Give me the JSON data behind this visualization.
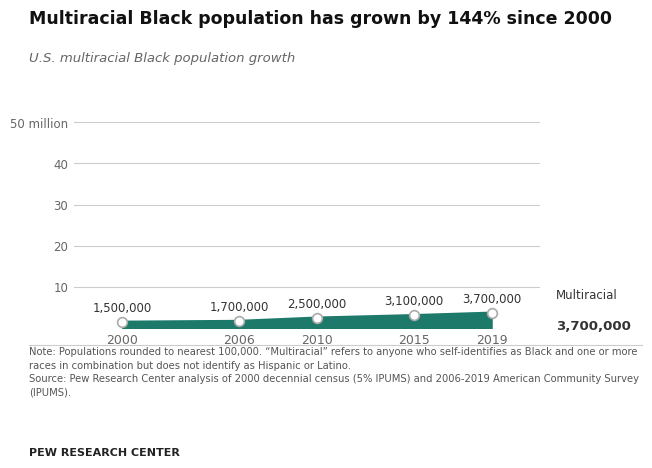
{
  "title": "Multiracial Black population has grown by 144% since 2000",
  "subtitle": "U.S. multiracial Black population growth",
  "years": [
    2000,
    2006,
    2010,
    2015,
    2019
  ],
  "values_millions": [
    1.5,
    1.7,
    2.5,
    3.1,
    3.7
  ],
  "labels": [
    "1,500,000",
    "1,700,000",
    "2,500,000",
    "3,100,000",
    "3,700,000"
  ],
  "line_color": "#1d7a6b",
  "marker_facecolor": "white",
  "marker_edgecolor": "#aaaaaa",
  "ylim": [
    0,
    55
  ],
  "yticks": [
    10,
    20,
    30,
    40,
    50
  ],
  "ytick_labels": [
    "10",
    "20",
    "30",
    "40",
    "50 million"
  ],
  "note_text": "Note: Populations rounded to nearest 100,000. “Multiracial” refers to anyone who self-identifies as Black and one or more\nraces in combination but does not identify as Hispanic or Latino.\nSource: Pew Research Center analysis of 2000 decennial census (5% IPUMS) and 2006-2019 American Community Survey\n(IPUMS).",
  "footer": "PEW RESEARCH CENTER",
  "bg_color": "#ffffff",
  "legend_label": "Multiracial",
  "legend_value": "3,700,000",
  "grid_color": "#cccccc",
  "text_color": "#333333",
  "axis_label_color": "#666666"
}
